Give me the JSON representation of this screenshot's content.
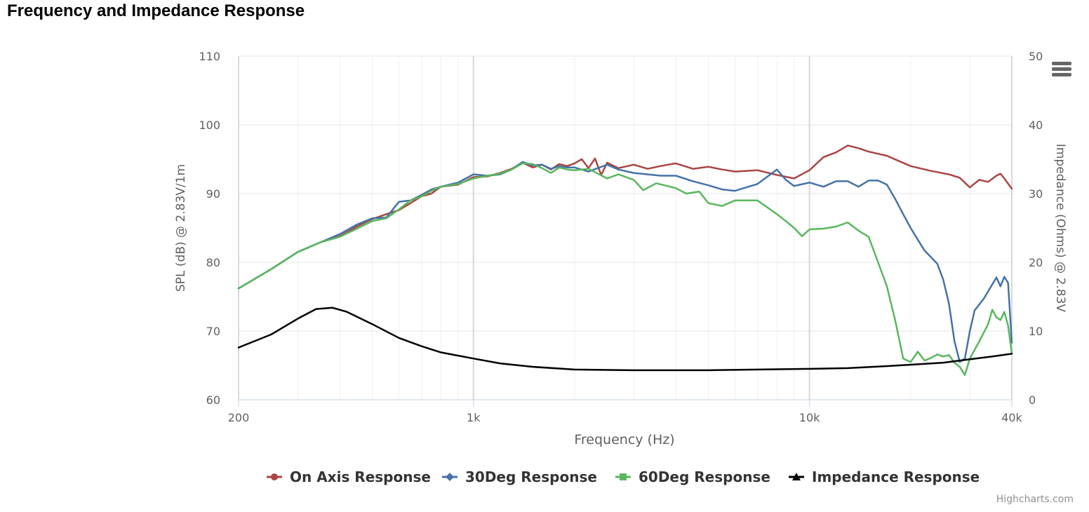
{
  "page": {
    "title": "Frequency and Impedance Response"
  },
  "credits": "Highcharts.com",
  "menu": {
    "icon": "hamburger-menu-icon"
  },
  "chart_data": {
    "type": "line",
    "title": "Frequency and Impedance Response",
    "xlabel": "Frequency (Hz)",
    "x_scale": "log",
    "xlim": [
      200,
      40000
    ],
    "x_ticks": [
      200,
      1000,
      10000,
      40000
    ],
    "x_tick_labels": [
      "200",
      "1k",
      "10k",
      "40k"
    ],
    "ylabel": "SPL (dB) @ 2.83V/1m",
    "ylim": [
      60,
      110
    ],
    "y_ticks": [
      60,
      70,
      80,
      90,
      100,
      110
    ],
    "y2label": "Impedance (Ohms) @ 2.83V",
    "y2lim": [
      0,
      50
    ],
    "y2_ticks": [
      0,
      10,
      20,
      30,
      40,
      50
    ],
    "grid": true,
    "legend_position": "bottom-center",
    "series": [
      {
        "name": "On Axis Response",
        "axis": "left",
        "color": "#aa4643",
        "marker": "circle",
        "points": [
          [
            200,
            76.2
          ],
          [
            250,
            79
          ],
          [
            300,
            81.5
          ],
          [
            350,
            82.9
          ],
          [
            400,
            83.8
          ],
          [
            450,
            85.2
          ],
          [
            500,
            86.3
          ],
          [
            550,
            87
          ],
          [
            600,
            87.6
          ],
          [
            650,
            88.6
          ],
          [
            700,
            89.6
          ],
          [
            750,
            90
          ],
          [
            800,
            91
          ],
          [
            900,
            91.3
          ],
          [
            1000,
            92.4
          ],
          [
            1100,
            92.5
          ],
          [
            1200,
            93
          ],
          [
            1300,
            93.6
          ],
          [
            1400,
            94.5
          ],
          [
            1500,
            93.8
          ],
          [
            1600,
            94.2
          ],
          [
            1700,
            93.5
          ],
          [
            1800,
            94.3
          ],
          [
            1900,
            94
          ],
          [
            2000,
            94.4
          ],
          [
            2100,
            95
          ],
          [
            2200,
            93.7
          ],
          [
            2300,
            95.1
          ],
          [
            2400,
            92.7
          ],
          [
            2500,
            94.5
          ],
          [
            2700,
            93.7
          ],
          [
            3000,
            94.2
          ],
          [
            3300,
            93.6
          ],
          [
            3600,
            94
          ],
          [
            4000,
            94.4
          ],
          [
            4500,
            93.6
          ],
          [
            5000,
            93.9
          ],
          [
            5500,
            93.5
          ],
          [
            6000,
            93.2
          ],
          [
            7000,
            93.4
          ],
          [
            8000,
            92.7
          ],
          [
            9000,
            92.2
          ],
          [
            10000,
            93.4
          ],
          [
            11000,
            95.3
          ],
          [
            12000,
            96
          ],
          [
            13000,
            97
          ],
          [
            14000,
            96.6
          ],
          [
            15000,
            96.1
          ],
          [
            17000,
            95.5
          ],
          [
            20000,
            94
          ],
          [
            23000,
            93.3
          ],
          [
            26000,
            92.8
          ],
          [
            28000,
            92.3
          ],
          [
            30000,
            90.9
          ],
          [
            32000,
            92
          ],
          [
            34000,
            91.7
          ],
          [
            36000,
            92.6
          ],
          [
            37000,
            92.9
          ],
          [
            38000,
            92.2
          ],
          [
            40000,
            90.7
          ]
        ]
      },
      {
        "name": "30Deg Response",
        "axis": "left",
        "color": "#4572a7",
        "marker": "diamond",
        "points": [
          [
            200,
            76.2
          ],
          [
            250,
            79
          ],
          [
            300,
            81.5
          ],
          [
            350,
            82.9
          ],
          [
            400,
            84.1
          ],
          [
            450,
            85.5
          ],
          [
            500,
            86.4
          ],
          [
            550,
            86.5
          ],
          [
            600,
            88.8
          ],
          [
            650,
            89
          ],
          [
            700,
            89.8
          ],
          [
            750,
            90.6
          ],
          [
            800,
            91
          ],
          [
            900,
            91.6
          ],
          [
            1000,
            92.8
          ],
          [
            1100,
            92.6
          ],
          [
            1200,
            92.8
          ],
          [
            1300,
            93.5
          ],
          [
            1400,
            94.6
          ],
          [
            1500,
            94.1
          ],
          [
            1600,
            94.2
          ],
          [
            1700,
            93.6
          ],
          [
            1800,
            94
          ],
          [
            1900,
            93.8
          ],
          [
            2000,
            93.8
          ],
          [
            2200,
            93.2
          ],
          [
            2500,
            94.2
          ],
          [
            2700,
            93.5
          ],
          [
            3000,
            93
          ],
          [
            3300,
            92.8
          ],
          [
            3600,
            92.6
          ],
          [
            4000,
            92.6
          ],
          [
            4500,
            91.8
          ],
          [
            5000,
            91.2
          ],
          [
            5500,
            90.6
          ],
          [
            6000,
            90.4
          ],
          [
            7000,
            91.4
          ],
          [
            8000,
            93.5
          ],
          [
            8500,
            92
          ],
          [
            9000,
            91.1
          ],
          [
            10000,
            91.6
          ],
          [
            11000,
            91
          ],
          [
            12000,
            91.8
          ],
          [
            13000,
            91.8
          ],
          [
            14000,
            91
          ],
          [
            15000,
            91.9
          ],
          [
            16000,
            91.9
          ],
          [
            17000,
            91.3
          ],
          [
            18000,
            89.2
          ],
          [
            19000,
            87
          ],
          [
            20000,
            85
          ],
          [
            21000,
            83.3
          ],
          [
            22000,
            81.7
          ],
          [
            24000,
            79.8
          ],
          [
            25000,
            77.5
          ],
          [
            26000,
            74
          ],
          [
            27000,
            68.5
          ],
          [
            28000,
            65.5
          ],
          [
            29000,
            66
          ],
          [
            30000,
            70
          ],
          [
            31000,
            73
          ],
          [
            33000,
            74.7
          ],
          [
            35000,
            76.8
          ],
          [
            36000,
            77.8
          ],
          [
            37000,
            76.5
          ],
          [
            38000,
            77.9
          ],
          [
            39000,
            77
          ],
          [
            40000,
            68.3
          ]
        ]
      },
      {
        "name": "60Deg Response",
        "axis": "left",
        "color": "#59b75e",
        "marker": "square",
        "points": [
          [
            200,
            76.2
          ],
          [
            250,
            79
          ],
          [
            300,
            81.5
          ],
          [
            350,
            82.9
          ],
          [
            400,
            83.7
          ],
          [
            450,
            84.9
          ],
          [
            500,
            86
          ],
          [
            550,
            86.4
          ],
          [
            600,
            87.7
          ],
          [
            650,
            89
          ],
          [
            700,
            89.6
          ],
          [
            750,
            90.4
          ],
          [
            800,
            91
          ],
          [
            900,
            91.4
          ],
          [
            1000,
            92.2
          ],
          [
            1100,
            92.6
          ],
          [
            1200,
            92.9
          ],
          [
            1300,
            93.5
          ],
          [
            1400,
            94.4
          ],
          [
            1500,
            94.3
          ],
          [
            1600,
            93.7
          ],
          [
            1700,
            93
          ],
          [
            1800,
            93.8
          ],
          [
            1900,
            93.5
          ],
          [
            2000,
            93.4
          ],
          [
            2200,
            93.6
          ],
          [
            2500,
            92.2
          ],
          [
            2700,
            92.8
          ],
          [
            3000,
            92
          ],
          [
            3200,
            90.5
          ],
          [
            3500,
            91.5
          ],
          [
            4000,
            90.8
          ],
          [
            4300,
            90
          ],
          [
            4700,
            90.3
          ],
          [
            5000,
            88.6
          ],
          [
            5500,
            88.2
          ],
          [
            6000,
            89
          ],
          [
            7000,
            89
          ],
          [
            8000,
            87
          ],
          [
            8500,
            86
          ],
          [
            9000,
            85
          ],
          [
            9500,
            83.8
          ],
          [
            10000,
            84.8
          ],
          [
            11000,
            84.9
          ],
          [
            12000,
            85.2
          ],
          [
            13000,
            85.8
          ],
          [
            14000,
            84.6
          ],
          [
            15000,
            83.7
          ],
          [
            16000,
            80
          ],
          [
            17000,
            76.5
          ],
          [
            18000,
            71.5
          ],
          [
            19000,
            66
          ],
          [
            20000,
            65.5
          ],
          [
            21000,
            67
          ],
          [
            22000,
            65.7
          ],
          [
            23000,
            66.1
          ],
          [
            24000,
            66.6
          ],
          [
            25000,
            66.3
          ],
          [
            26000,
            66.5
          ],
          [
            27000,
            65.4
          ],
          [
            28000,
            64.8
          ],
          [
            29000,
            63.6
          ],
          [
            30000,
            66
          ],
          [
            32000,
            68.5
          ],
          [
            34000,
            71
          ],
          [
            35000,
            73.1
          ],
          [
            36000,
            72
          ],
          [
            37000,
            71.6
          ],
          [
            38000,
            72.8
          ],
          [
            39000,
            70.8
          ],
          [
            40000,
            66.8
          ]
        ]
      },
      {
        "name": "Impedance Response",
        "axis": "right",
        "color": "#000000",
        "marker": "triangle",
        "points": [
          [
            200,
            7.6
          ],
          [
            250,
            9.5
          ],
          [
            300,
            11.8
          ],
          [
            340,
            13.2
          ],
          [
            380,
            13.4
          ],
          [
            420,
            12.8
          ],
          [
            500,
            11
          ],
          [
            600,
            9
          ],
          [
            700,
            7.8
          ],
          [
            800,
            6.9
          ],
          [
            1000,
            6
          ],
          [
            1200,
            5.3
          ],
          [
            1500,
            4.8
          ],
          [
            2000,
            4.4
          ],
          [
            3000,
            4.3
          ],
          [
            5000,
            4.3
          ],
          [
            7000,
            4.4
          ],
          [
            10000,
            4.5
          ],
          [
            13000,
            4.6
          ],
          [
            17000,
            4.9
          ],
          [
            20000,
            5.1
          ],
          [
            25000,
            5.4
          ],
          [
            30000,
            5.9
          ],
          [
            35000,
            6.3
          ],
          [
            40000,
            6.7
          ]
        ]
      }
    ]
  }
}
